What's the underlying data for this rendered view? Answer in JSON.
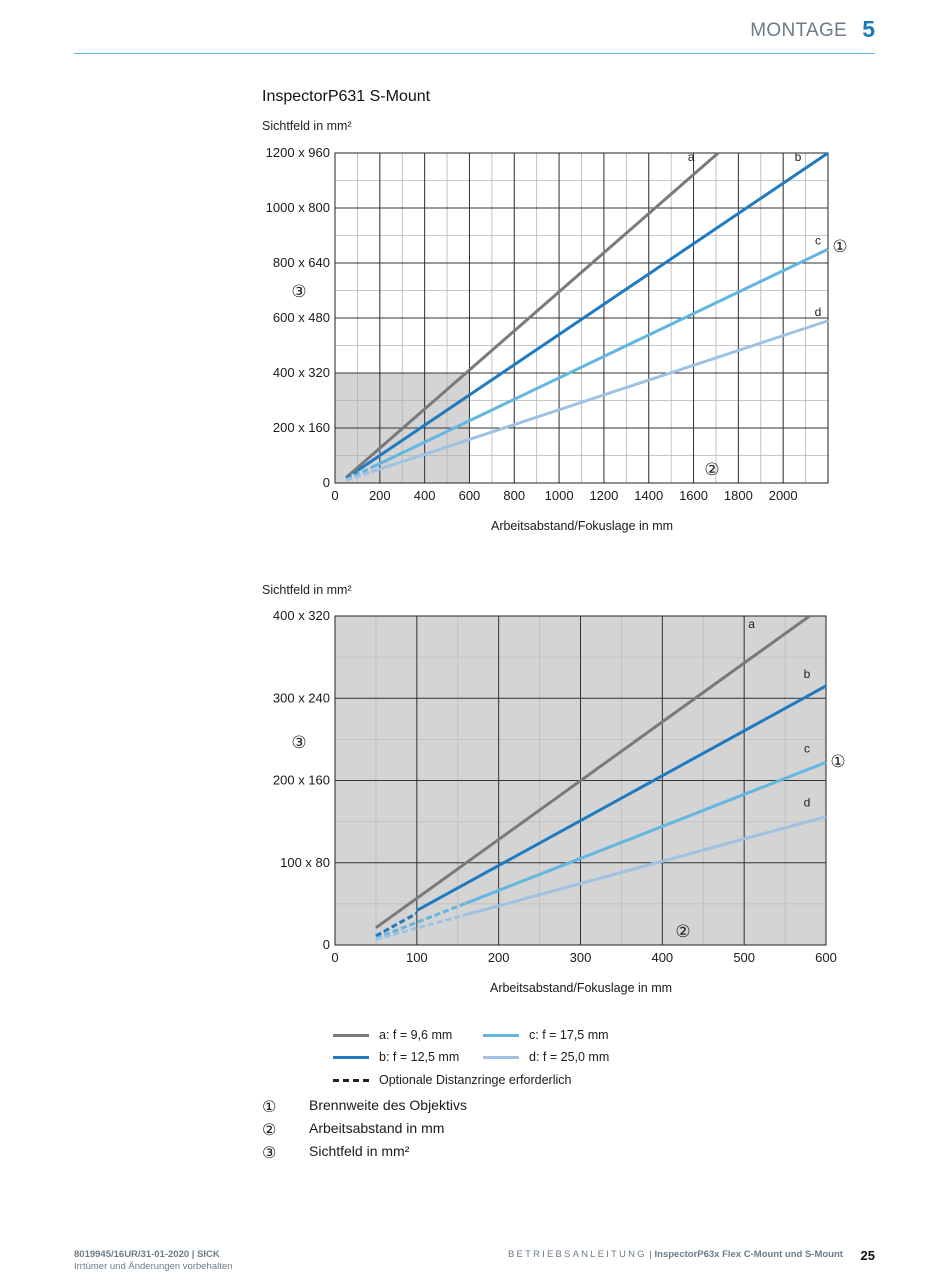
{
  "header": {
    "section_title": "MONTAGE",
    "section_number": "5"
  },
  "document_title": "InspectorP631 S-Mount",
  "colors": {
    "a": "#7a7a7a",
    "b": "#1f7abf",
    "c": "#63b6df",
    "d": "#9fc2e4",
    "shade": "#d4d4d4",
    "accent": "#5fb7dd"
  },
  "chart_data": [
    {
      "type": "line",
      "ylabel": "Sichtfeld in mm²",
      "xlabel": "Arbeitsabstand/Fokuslage in mm",
      "xlim": [
        0,
        2200
      ],
      "ylim": [
        0,
        1200
      ],
      "x_ticks": [
        "0",
        "200",
        "400",
        "600",
        "800",
        "1000",
        "1200",
        "1400",
        "1600",
        "1800",
        "2000"
      ],
      "y_ticks": [
        "0",
        "200 x 160",
        "400 x 320",
        "600 x 480",
        "800 x 640",
        "1000 x 800",
        "1200 x 960"
      ],
      "shaded_region": {
        "x": [
          0,
          600
        ],
        "y": [
          0,
          400
        ]
      },
      "series": [
        {
          "name": "a",
          "points": [
            [
              50,
              20
            ],
            [
              1710,
              1200
            ]
          ],
          "dashed_until": 0
        },
        {
          "name": "b",
          "points": [
            [
              50,
              15
            ],
            [
              100,
              45
            ],
            [
              2200,
              1200
            ]
          ],
          "dashed_until": 100
        },
        {
          "name": "c",
          "points": [
            [
              50,
              12
            ],
            [
              2200,
              850
            ]
          ],
          "dashed_until": 160
        },
        {
          "name": "d",
          "points": [
            [
              50,
              10
            ],
            [
              2200,
              590
            ]
          ],
          "dashed_until": 160
        }
      ],
      "callouts": [
        "①",
        "②",
        "③"
      ]
    },
    {
      "type": "line",
      "ylabel": "Sichtfeld in mm²",
      "xlabel": "Arbeitsabstand/Fokuslage in mm",
      "xlim": [
        0,
        600
      ],
      "ylim": [
        0,
        400
      ],
      "x_ticks": [
        "0",
        "100",
        "200",
        "300",
        "400",
        "500",
        "600"
      ],
      "y_ticks": [
        "0",
        "100 x 80",
        "200 x 160",
        "300 x 240",
        "400 x 320"
      ],
      "series": [
        {
          "name": "a",
          "points": [
            [
              50,
              21
            ],
            [
              580,
              400
            ]
          ],
          "dashed_until": 0
        },
        {
          "name": "b",
          "points": [
            [
              50,
              11
            ],
            [
              100,
              42
            ],
            [
              600,
              315
            ]
          ],
          "dashed_until": 100
        },
        {
          "name": "c",
          "points": [
            [
              50,
              8
            ],
            [
              600,
              222
            ]
          ],
          "dashed_until": 160
        },
        {
          "name": "d",
          "points": [
            [
              50,
              7
            ],
            [
              600,
              156
            ]
          ],
          "dashed_until": 160
        }
      ],
      "callouts": [
        "①",
        "②",
        "③"
      ]
    }
  ],
  "legend": [
    {
      "key": "a",
      "label": "a: f = 9,6 mm"
    },
    {
      "key": "c",
      "label": "c: f = 17,5 mm"
    },
    {
      "key": "b",
      "label": "b: f = 12,5 mm"
    },
    {
      "key": "d",
      "label": "d: f = 25,0 mm"
    },
    {
      "key": "dashed",
      "label": "Optionale Distanzringe erforderlich"
    }
  ],
  "notes": [
    {
      "num": "①",
      "text": "Brennweite des Objektivs"
    },
    {
      "num": "②",
      "text": "Arbeitsabstand in mm"
    },
    {
      "num": "③",
      "text": "Sichtfeld in mm²"
    }
  ],
  "footer": {
    "doc_id": "8019945/16UR/31-01-2020 | SICK",
    "disclaimer": "Irrtümer und Änderungen vorbehalten",
    "manual_type": "BETRIEBSANLEITUNG",
    "separator": " | ",
    "product": "InspectorP63x Flex C-Mount und S-Mount",
    "page_number": "25"
  }
}
